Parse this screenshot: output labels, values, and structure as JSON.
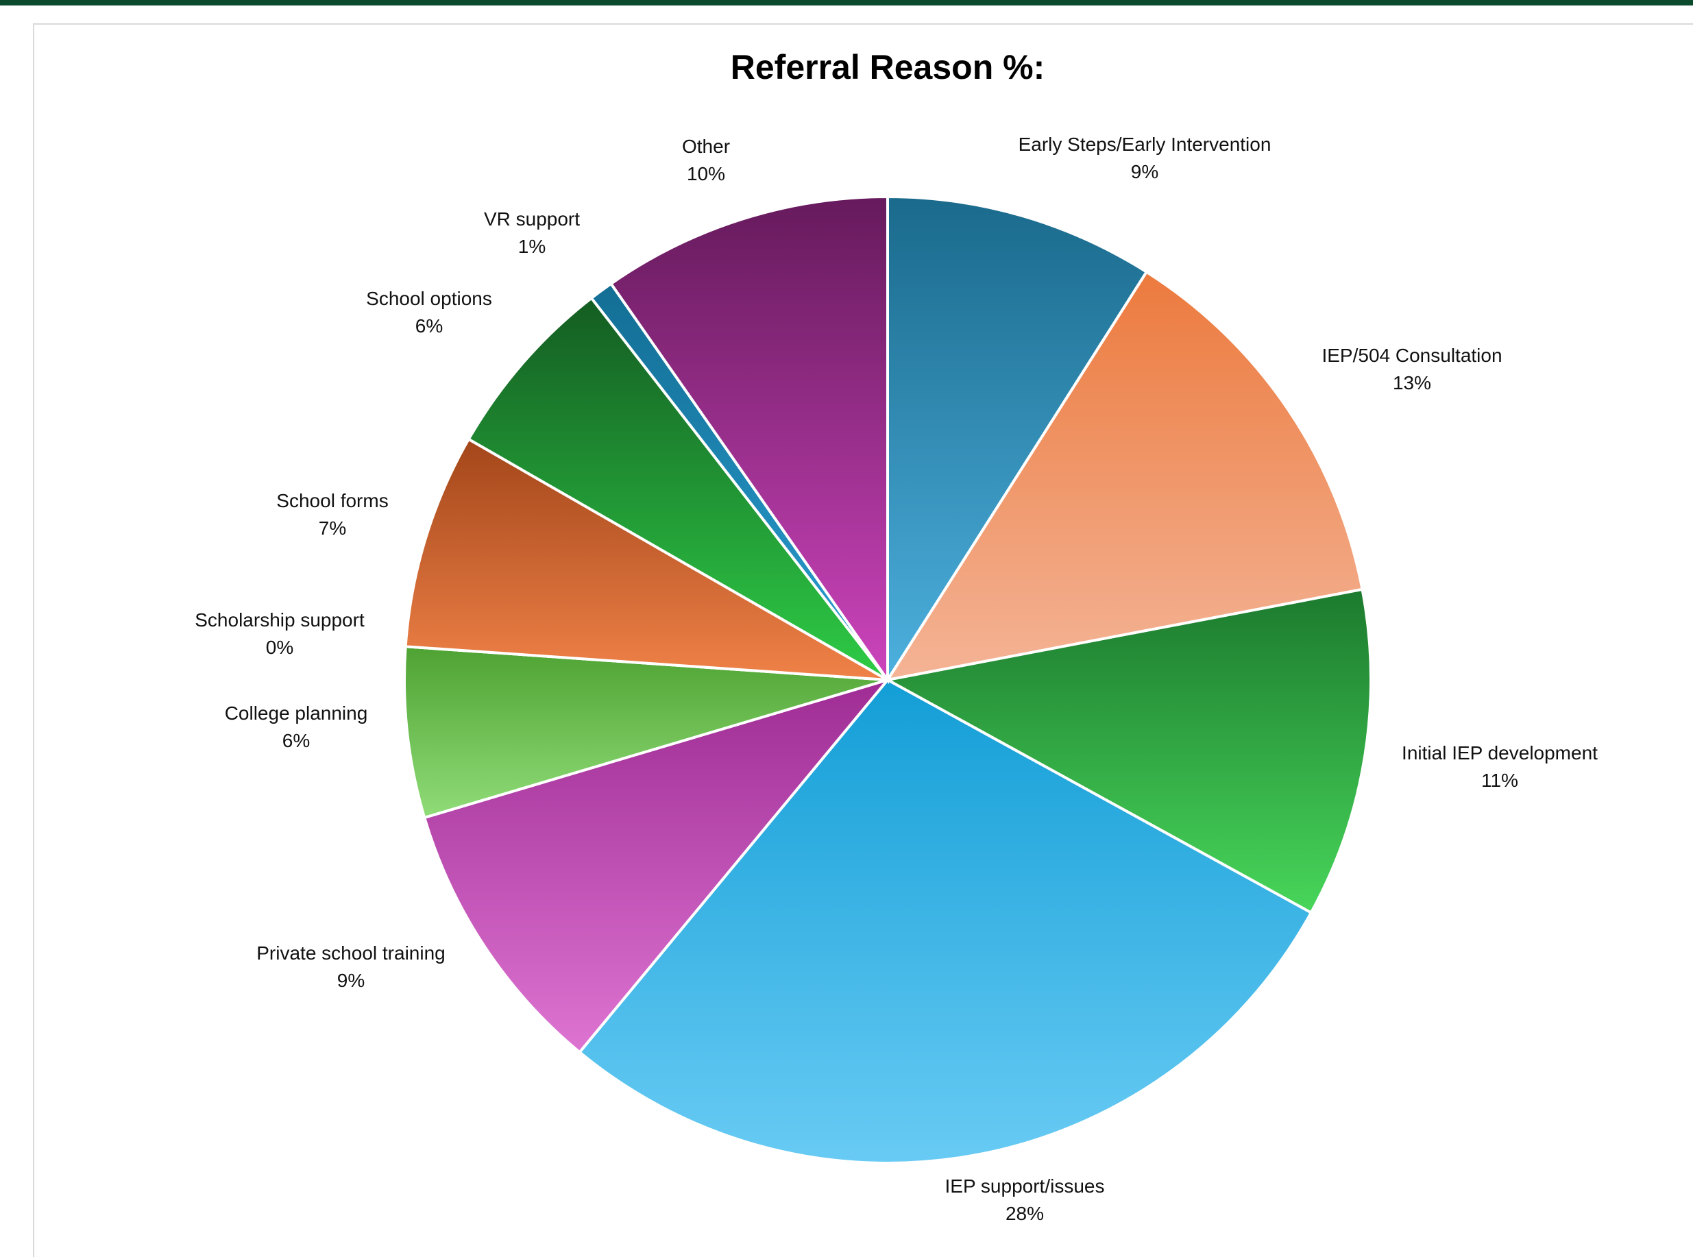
{
  "chart_data": {
    "type": "pie",
    "title": "Referral Reason %:",
    "start_angle_deg": 0,
    "direction": "clockwise",
    "slices": [
      {
        "label": "Early Steps/Early Intervention",
        "pct_label": "9%",
        "value": 9.0,
        "color_top": "#1a6a8c",
        "color_bottom": "#4db0de"
      },
      {
        "label": "IEP/504 Consultation",
        "pct_label": "13%",
        "value": 13.0,
        "color_top": "#ec7a3e",
        "color_bottom": "#f4b496"
      },
      {
        "label": "Initial IEP development",
        "pct_label": "11%",
        "value": 11.0,
        "color_top": "#1c7a2e",
        "color_bottom": "#48d65a"
      },
      {
        "label": "IEP support/issues",
        "pct_label": "28%",
        "value": 28.0,
        "color_top": "#139ed6",
        "color_bottom": "#68cbf4"
      },
      {
        "label": "Private school training",
        "pct_label": "9%",
        "value": 9.4,
        "color_top": "#9e2c94",
        "color_bottom": "#de74d2"
      },
      {
        "label": "College planning",
        "pct_label": "6%",
        "value": 5.7,
        "color_top": "#4ea232",
        "color_bottom": "#90dc78"
      },
      {
        "label": "Scholarship support",
        "pct_label": "0%",
        "value": 0.0,
        "color_top": "#e67238",
        "color_bottom": "#e67238"
      },
      {
        "label": "School forms",
        "pct_label": "7%",
        "value": 7.2,
        "color_top": "#a3461a",
        "color_bottom": "#f08248"
      },
      {
        "label": "School options",
        "pct_label": "6%",
        "value": 6.2,
        "color_top": "#145c22",
        "color_bottom": "#2ecc46"
      },
      {
        "label": "VR support",
        "pct_label": "1%",
        "value": 0.8,
        "color_top": "#136e94",
        "color_bottom": "#2a9ed2"
      },
      {
        "label": "Other",
        "pct_label": "10%",
        "value": 9.7,
        "color_top": "#661a5c",
        "color_bottom": "#cc44bc"
      }
    ]
  }
}
